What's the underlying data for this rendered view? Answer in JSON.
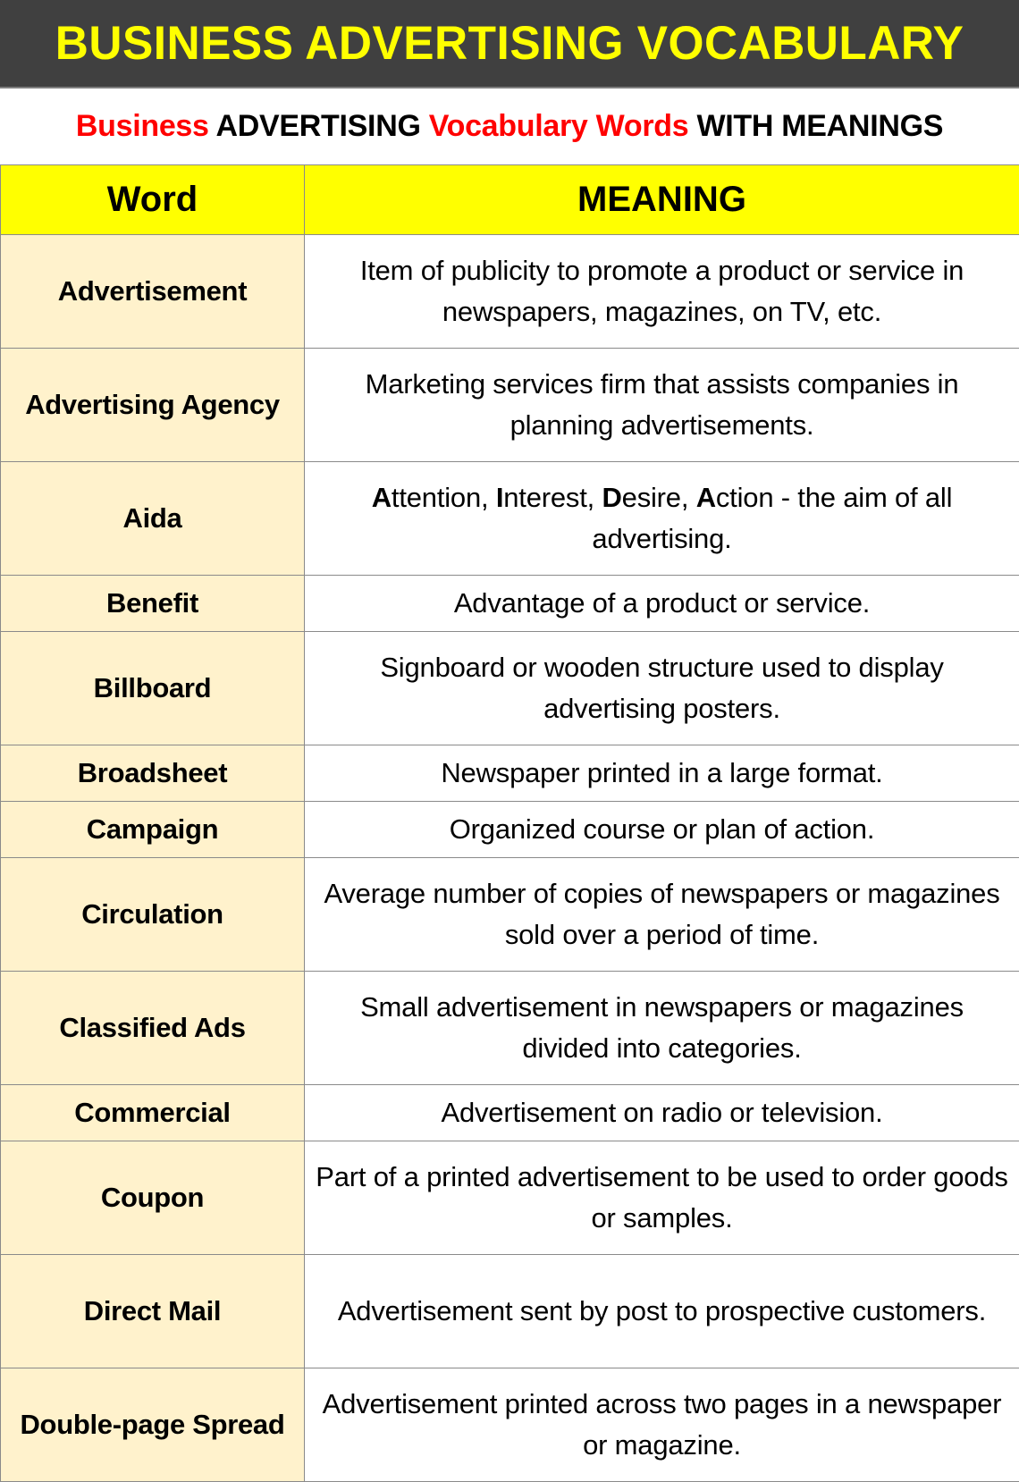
{
  "header": {
    "title": "BUSINESS ADVERTISING VOCABULARY",
    "title_color": "#ffff00",
    "band_color": "#404040"
  },
  "subtitle": {
    "segments": [
      {
        "text": "Business",
        "color": "red"
      },
      {
        "text": " ADVERTISING ",
        "color": "black"
      },
      {
        "text": "Vocabulary Words",
        "color": "red"
      },
      {
        "text": " WITH MEANINGS",
        "color": "black"
      }
    ]
  },
  "table": {
    "columns": [
      "Word",
      "MEANING"
    ],
    "header_color": "#ffff00",
    "word_column_color": "#fff2cc",
    "rows": [
      {
        "word": "Advertisement",
        "meaning": "Item of publicity to promote a product or service in newspapers, magazines, on TV, etc.",
        "size": "tall"
      },
      {
        "word": "Advertising Agency",
        "meaning": "Marketing services firm that assists companies in planning advertisements.",
        "size": "tall"
      },
      {
        "word": "Aida",
        "meaning": "Attention, Interest, Desire, Action - the aim of all advertising.",
        "size": "tall",
        "meaning_segments": [
          {
            "text": "A",
            "bold": true
          },
          {
            "text": "ttention, ",
            "bold": false
          },
          {
            "text": "I",
            "bold": true
          },
          {
            "text": "nterest, ",
            "bold": false
          },
          {
            "text": "D",
            "bold": true
          },
          {
            "text": "esire, ",
            "bold": false
          },
          {
            "text": "A",
            "bold": true
          },
          {
            "text": "ction - the aim of all advertising.",
            "bold": false
          }
        ]
      },
      {
        "word": "Benefit",
        "meaning": "Advantage of a product or service.",
        "size": "short"
      },
      {
        "word": "Billboard",
        "meaning": "Signboard or wooden structure used to display advertising posters.",
        "size": "tall"
      },
      {
        "word": "Broadsheet",
        "meaning": "Newspaper printed in a large format.",
        "size": "short"
      },
      {
        "word": "Campaign",
        "meaning": "Organized course or plan of action.",
        "size": "short"
      },
      {
        "word": "Circulation",
        "meaning": "Average number of copies of newspapers or magazines sold over a period of time.",
        "size": "tall"
      },
      {
        "word": "Classified Ads",
        "meaning": "Small advertisement in newspapers or magazines divided into categories.",
        "size": "tall"
      },
      {
        "word": "Commercial",
        "meaning": "Advertisement on radio or television.",
        "size": "short"
      },
      {
        "word": "Coupon",
        "meaning": "Part of a printed advertisement to be used to order goods or samples.",
        "size": "tall"
      },
      {
        "word": "Direct Mail",
        "meaning": "Advertisement sent by post to prospective customers.",
        "size": "tall"
      },
      {
        "word": "Double-page Spread",
        "meaning": "Advertisement printed across two pages in a newspaper or magazine.",
        "size": "tall"
      }
    ]
  }
}
